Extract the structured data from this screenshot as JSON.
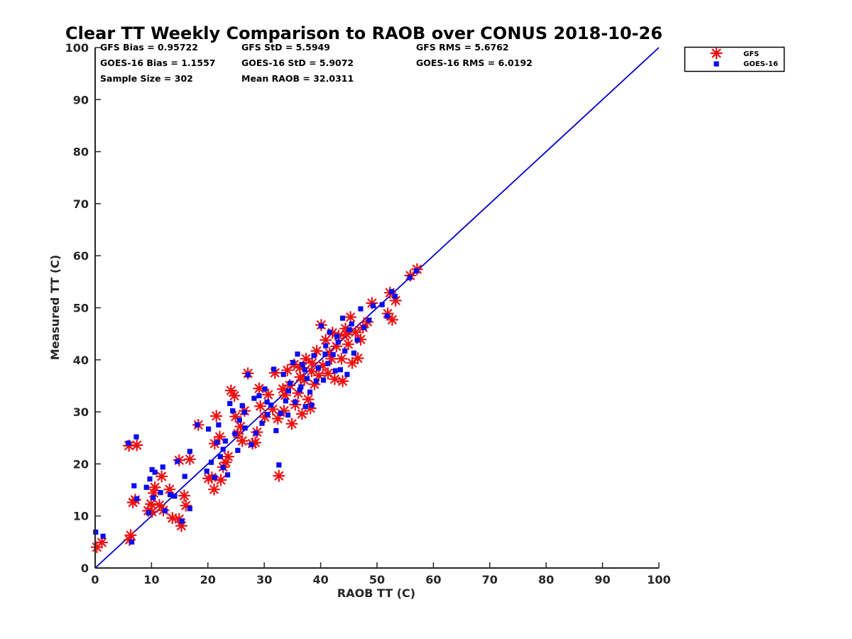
{
  "chart_data": {
    "type": "scatter",
    "title": "Clear TT Weekly Comparison to RAOB over CONUS 2018-10-26",
    "xlabel": "RAOB TT (C)",
    "ylabel": "Measured TT (C)",
    "xlim": [
      0,
      100
    ],
    "ylim": [
      0,
      100
    ],
    "xticks": [
      "0",
      "10",
      "20",
      "30",
      "40",
      "50",
      "60",
      "70",
      "80",
      "90",
      "100"
    ],
    "yticks": [
      "0",
      "10",
      "20",
      "30",
      "40",
      "50",
      "60",
      "70",
      "80",
      "90",
      "100"
    ],
    "legend_position": "top-right-outside",
    "reference_line": {
      "from": [
        0,
        0
      ],
      "to": [
        100,
        100
      ],
      "color": "#0000cc"
    },
    "stats": [
      "GFS Bias = 0.95722",
      "GFS StD = 5.5949",
      "GFS RMS = 5.6762",
      "GOES-16 Bias = 1.1557",
      "GOES-16 StD = 5.9072",
      "GOES-16 RMS = 6.0192",
      "Sample Size = 302",
      "Mean RAOB = 32.0311"
    ],
    "series": [
      {
        "name": "GFS",
        "marker": "asterisk",
        "color": "#ee1111",
        "points": [
          [
            0.3,
            4.0
          ],
          [
            1.2,
            4.9
          ],
          [
            6.1,
            5.4
          ],
          [
            6.3,
            6.3
          ],
          [
            6.0,
            23.5
          ],
          [
            7.4,
            23.6
          ],
          [
            6.7,
            12.6
          ],
          [
            7.1,
            13.1
          ],
          [
            9.4,
            11.0
          ],
          [
            9.9,
            12.3
          ],
          [
            10.1,
            10.8
          ],
          [
            10.4,
            14.4
          ],
          [
            10.6,
            15.5
          ],
          [
            11.4,
            12.1
          ],
          [
            12.1,
            11.1
          ],
          [
            11.8,
            17.6
          ],
          [
            13.2,
            15.1
          ],
          [
            13.7,
            9.6
          ],
          [
            14.9,
            9.4
          ],
          [
            15.3,
            8.1
          ],
          [
            15.8,
            13.9
          ],
          [
            16.1,
            12.0
          ],
          [
            16.8,
            20.9
          ],
          [
            14.9,
            20.7
          ],
          [
            18.3,
            27.5
          ],
          [
            20.1,
            17.2
          ],
          [
            20.7,
            17.4
          ],
          [
            21.1,
            15.1
          ],
          [
            21.5,
            29.2
          ],
          [
            22.3,
            16.9
          ],
          [
            22.1,
            25.2
          ],
          [
            22.7,
            19.4
          ],
          [
            23.2,
            20.3
          ],
          [
            23.6,
            21.4
          ],
          [
            24.1,
            34.1
          ],
          [
            24.7,
            33.1
          ],
          [
            24.9,
            29.1
          ],
          [
            25.3,
            25.8
          ],
          [
            26.1,
            24.4
          ],
          [
            26.5,
            30.2
          ],
          [
            27.1,
            37.4
          ],
          [
            27.9,
            23.9
          ],
          [
            28.4,
            24.1
          ],
          [
            28.7,
            26.1
          ],
          [
            29.3,
            31.1
          ],
          [
            30.1,
            29.0
          ],
          [
            30.7,
            33.3
          ],
          [
            31.5,
            30.5
          ],
          [
            31.9,
            37.5
          ],
          [
            32.4,
            28.7
          ],
          [
            32.6,
            17.7
          ],
          [
            33.3,
            34.4
          ],
          [
            33.5,
            30.2
          ],
          [
            34.1,
            38.0
          ],
          [
            34.5,
            35.1
          ],
          [
            34.9,
            27.7
          ],
          [
            35.5,
            31.4
          ],
          [
            35.3,
            39.1
          ],
          [
            36.0,
            33.6
          ],
          [
            36.3,
            38.5
          ],
          [
            36.7,
            29.6
          ],
          [
            37.1,
            36.1
          ],
          [
            37.4,
            40.2
          ],
          [
            37.8,
            32.4
          ],
          [
            38.2,
            30.7
          ],
          [
            38.5,
            39.4
          ],
          [
            38.9,
            35.3
          ],
          [
            39.3,
            41.7
          ],
          [
            39.7,
            37.0
          ],
          [
            40.1,
            46.7
          ],
          [
            40.4,
            38.9
          ],
          [
            40.9,
            43.8
          ],
          [
            41.3,
            37.4
          ],
          [
            41.6,
            41.3
          ],
          [
            42.1,
            45.2
          ],
          [
            42.5,
            36.3
          ],
          [
            42.8,
            42.6
          ],
          [
            43.2,
            44.6
          ],
          [
            43.7,
            40.2
          ],
          [
            43.9,
            35.9
          ],
          [
            44.4,
            46.0
          ],
          [
            44.9,
            43.0
          ],
          [
            45.3,
            48.2
          ],
          [
            45.6,
            39.4
          ],
          [
            46.2,
            45.3
          ],
          [
            46.6,
            40.3
          ],
          [
            47.1,
            43.9
          ],
          [
            47.5,
            46.2
          ],
          [
            48.3,
            47.3
          ],
          [
            49.1,
            50.9
          ],
          [
            51.9,
            48.9
          ],
          [
            52.3,
            52.9
          ],
          [
            52.7,
            47.7
          ],
          [
            53.3,
            51.4
          ],
          [
            55.9,
            56.2
          ],
          [
            57.1,
            57.4
          ],
          [
            21.2,
            23.9
          ],
          [
            25.8,
            27.2
          ],
          [
            29.1,
            34.5
          ],
          [
            33.7,
            33.2
          ],
          [
            36.4,
            36.7
          ],
          [
            41.9,
            40.2
          ],
          [
            44.6,
            44.9
          ],
          [
            38.4,
            37.8
          ]
        ]
      },
      {
        "name": "GOES-16",
        "marker": "square",
        "color": "#0a0aee",
        "points": [
          [
            0.1,
            6.9
          ],
          [
            1.4,
            6.1
          ],
          [
            5.9,
            24.0
          ],
          [
            6.5,
            5.0
          ],
          [
            6.9,
            15.8
          ],
          [
            7.3,
            25.2
          ],
          [
            7.4,
            13.3
          ],
          [
            9.1,
            15.5
          ],
          [
            9.5,
            10.6
          ],
          [
            9.7,
            17.1
          ],
          [
            10.1,
            18.9
          ],
          [
            10.3,
            13.5
          ],
          [
            10.6,
            18.4
          ],
          [
            11.6,
            14.5
          ],
          [
            12.0,
            19.4
          ],
          [
            12.4,
            11.0
          ],
          [
            13.3,
            14.1
          ],
          [
            14.1,
            13.8
          ],
          [
            14.6,
            20.5
          ],
          [
            15.4,
            9.0
          ],
          [
            15.9,
            17.6
          ],
          [
            16.8,
            11.4
          ],
          [
            16.8,
            22.4
          ],
          [
            18.1,
            27.5
          ],
          [
            19.8,
            18.6
          ],
          [
            20.1,
            26.7
          ],
          [
            20.6,
            20.3
          ],
          [
            21.2,
            17.4
          ],
          [
            21.6,
            24.1
          ],
          [
            21.9,
            27.5
          ],
          [
            22.2,
            21.4
          ],
          [
            22.7,
            19.3
          ],
          [
            23.1,
            24.4
          ],
          [
            23.5,
            17.9
          ],
          [
            23.9,
            31.6
          ],
          [
            24.4,
            30.2
          ],
          [
            24.8,
            25.8
          ],
          [
            25.3,
            22.6
          ],
          [
            25.6,
            28.4
          ],
          [
            26.1,
            31.2
          ],
          [
            26.5,
            29.9
          ],
          [
            27.1,
            37.1
          ],
          [
            27.7,
            23.7
          ],
          [
            28.2,
            32.6
          ],
          [
            28.5,
            25.9
          ],
          [
            29.1,
            33.1
          ],
          [
            29.6,
            27.8
          ],
          [
            30.1,
            34.4
          ],
          [
            30.6,
            29.5
          ],
          [
            31.2,
            31.3
          ],
          [
            31.7,
            38.2
          ],
          [
            32.1,
            26.4
          ],
          [
            32.6,
            19.8
          ],
          [
            32.9,
            29.7
          ],
          [
            33.4,
            37.2
          ],
          [
            33.8,
            32.1
          ],
          [
            34.2,
            29.4
          ],
          [
            34.6,
            35.5
          ],
          [
            35.1,
            39.5
          ],
          [
            35.5,
            31.9
          ],
          [
            35.9,
            41.1
          ],
          [
            36.3,
            34.2
          ],
          [
            36.8,
            39.1
          ],
          [
            37.3,
            31.0
          ],
          [
            37.6,
            36.4
          ],
          [
            38.1,
            33.8
          ],
          [
            38.4,
            31.3
          ],
          [
            38.8,
            40.8
          ],
          [
            39.2,
            35.9
          ],
          [
            39.6,
            38.4
          ],
          [
            40.1,
            46.5
          ],
          [
            40.5,
            36.1
          ],
          [
            40.9,
            42.7
          ],
          [
            41.3,
            39.3
          ],
          [
            41.6,
            45.3
          ],
          [
            42.2,
            41.0
          ],
          [
            42.6,
            37.9
          ],
          [
            43.1,
            43.4
          ],
          [
            43.5,
            38.1
          ],
          [
            43.9,
            48.0
          ],
          [
            44.3,
            41.7
          ],
          [
            44.7,
            37.2
          ],
          [
            45.1,
            45.8
          ],
          [
            45.5,
            46.9
          ],
          [
            45.9,
            41.3
          ],
          [
            46.5,
            43.8
          ],
          [
            47.1,
            49.8
          ],
          [
            47.7,
            46.2
          ],
          [
            48.6,
            47.6
          ],
          [
            49.3,
            50.4
          ],
          [
            50.9,
            50.6
          ],
          [
            51.8,
            48.4
          ],
          [
            52.6,
            53.1
          ],
          [
            53.2,
            52.2
          ],
          [
            55.8,
            55.8
          ],
          [
            57.0,
            57.1
          ],
          [
            22.7,
            22.8
          ],
          [
            26.6,
            26.9
          ],
          [
            30.5,
            31.9
          ],
          [
            34.3,
            34.0
          ],
          [
            37.2,
            38.1
          ],
          [
            40.8,
            41.1
          ],
          [
            42.9,
            44.5
          ],
          [
            36.5,
            34.8
          ]
        ]
      }
    ]
  }
}
